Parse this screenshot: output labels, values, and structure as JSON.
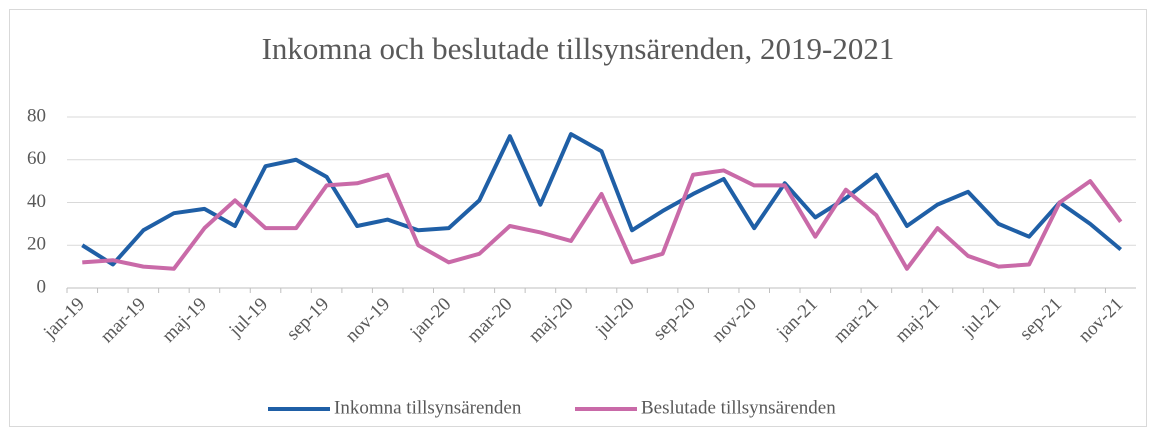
{
  "chart_data": {
    "type": "line",
    "title": "Inkomna och beslutade tillsynsärenden, 2019-2021",
    "categories": [
      "jan-19",
      null,
      "mar-19",
      null,
      "maj-19",
      null,
      "jul-19",
      null,
      "sep-19",
      null,
      "nov-19",
      null,
      "jan-20",
      null,
      "mar-20",
      null,
      "maj-20",
      null,
      "jul-20",
      null,
      "sep-20",
      null,
      "nov-20",
      null,
      "jan-21",
      null,
      "mar-21",
      null,
      "maj-21",
      null,
      "jul-21",
      null,
      "sep-21",
      null,
      "nov-21"
    ],
    "series": [
      {
        "name": "Inkomna tillsynsärenden",
        "color": "#1f5fa6",
        "values": [
          20,
          11,
          27,
          35,
          37,
          29,
          57,
          60,
          52,
          29,
          32,
          27,
          28,
          41,
          71,
          39,
          72,
          64,
          27,
          36,
          44,
          51,
          28,
          49,
          33,
          42,
          53,
          29,
          39,
          45,
          30,
          24,
          40,
          30,
          18
        ]
      },
      {
        "name": "Beslutade tillsynsärenden",
        "color": "#c96aa8",
        "values": [
          12,
          13,
          10,
          9,
          28,
          41,
          28,
          28,
          48,
          49,
          53,
          20,
          12,
          16,
          29,
          26,
          22,
          44,
          12,
          16,
          53,
          55,
          48,
          48,
          24,
          46,
          34,
          9,
          28,
          15,
          10,
          11,
          40,
          50,
          31
        ]
      }
    ],
    "ylim": [
      0,
      80
    ],
    "yticks": [
      0,
      20,
      40,
      60,
      80
    ],
    "grid": true,
    "legend": "bottom"
  }
}
